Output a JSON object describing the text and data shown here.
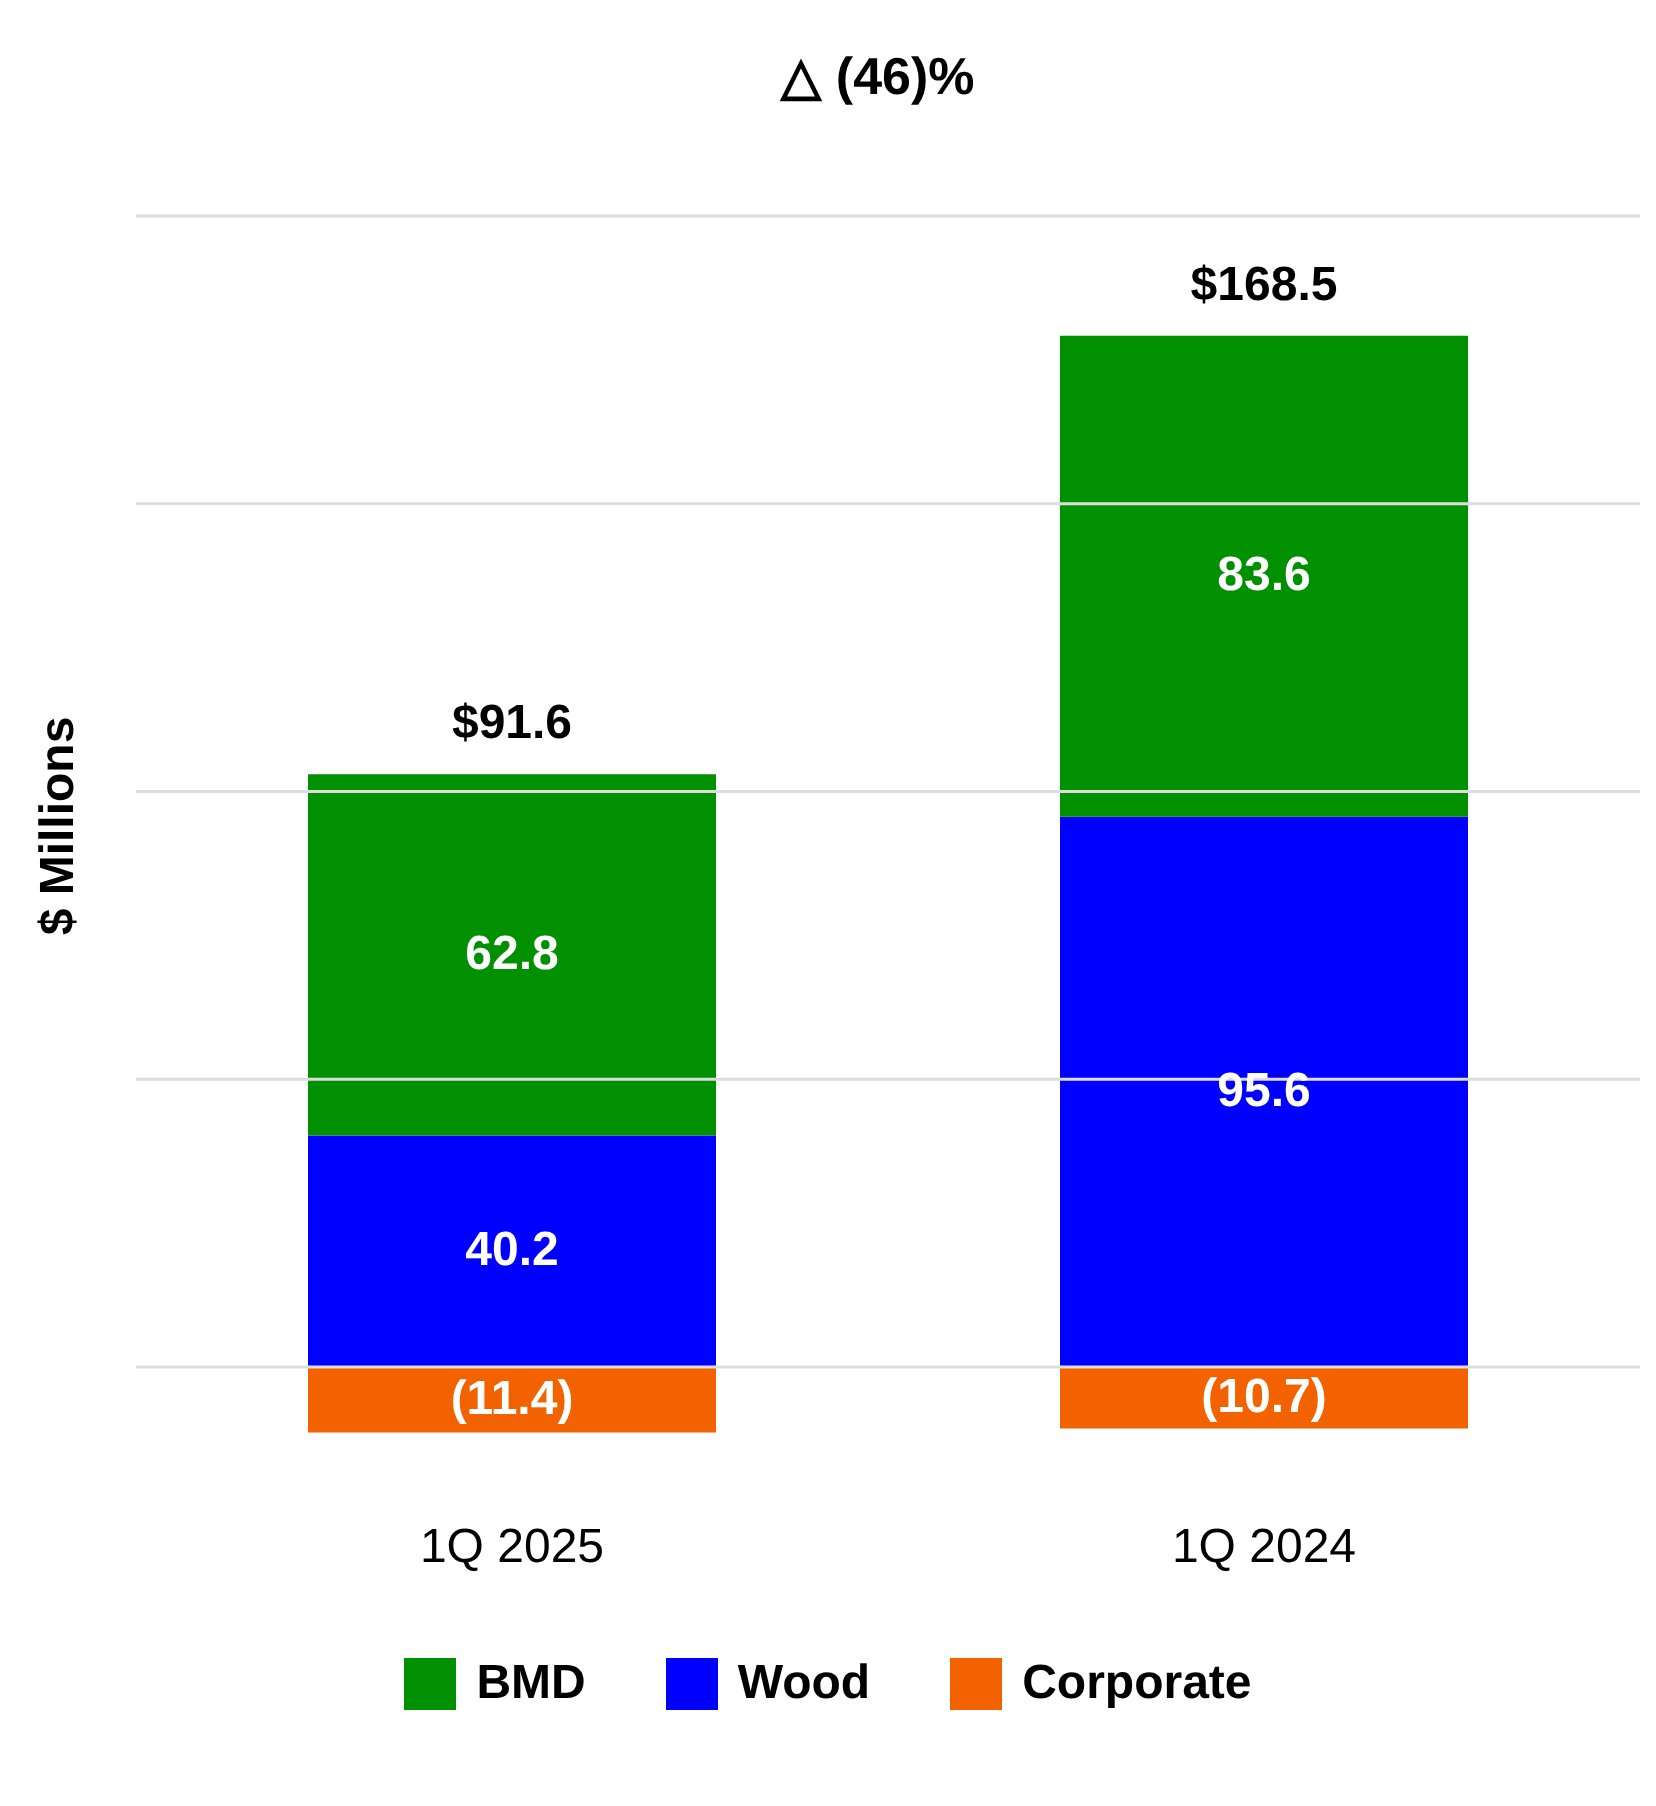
{
  "chart_data": {
    "type": "bar",
    "title": "△ (46)%",
    "ylabel": "$ Millions",
    "categories": [
      "1Q 2025",
      "1Q 2024"
    ],
    "stacked": true,
    "series": [
      {
        "name": "Corporate",
        "color": "#f26300",
        "values": [
          -11.4,
          -10.7
        ],
        "value_labels": [
          "(11.4)",
          "(10.7)"
        ]
      },
      {
        "name": "Wood",
        "color": "#0000ff",
        "values": [
          40.2,
          95.6
        ],
        "value_labels": [
          "40.2",
          "95.6"
        ]
      },
      {
        "name": "BMD",
        "color": "#009000",
        "values": [
          62.8,
          83.6
        ],
        "value_labels": [
          "62.8",
          "83.6"
        ]
      }
    ],
    "totals": [
      "$91.6",
      "$168.5"
    ],
    "ylim": [
      -12,
      200
    ],
    "yticks": [
      {
        "value": 0,
        "label": null
      },
      {
        "value": 50,
        "label": null
      },
      {
        "value": 100,
        "label": null
      },
      {
        "value": 150,
        "label": null
      },
      {
        "value": 200,
        "label": null
      }
    ],
    "grid": "y",
    "legend": "bottom",
    "tick_labels": "x"
  }
}
